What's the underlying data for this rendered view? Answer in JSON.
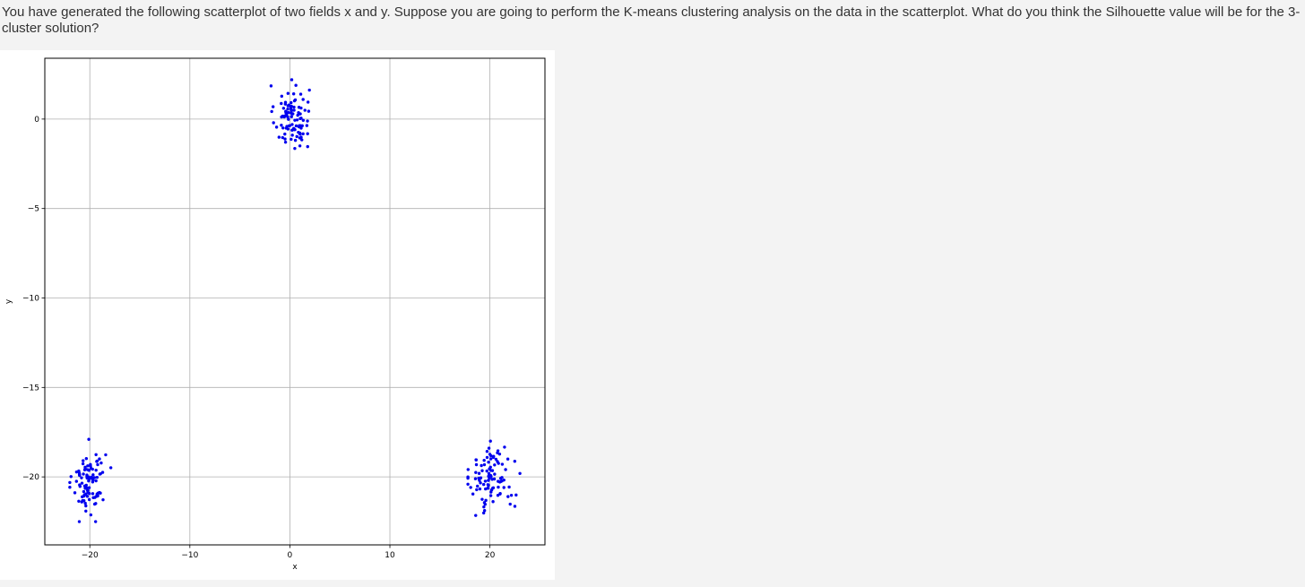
{
  "question": {
    "text": "You have generated the following scatterplot of two fields x and y.  Suppose you are going to perform the K-means clustering analysis on the data in the scatterplot.  What do you think the Silhouette value will be for the 3-cluster solution?"
  },
  "colors": {
    "point": "#0000ee",
    "grid": "#b0b0b0",
    "axis": "#000000",
    "page_background": "#f3f3f3",
    "figure_background": "#ffffff"
  },
  "chart_data": {
    "type": "scatter",
    "title": "",
    "xlabel": "x",
    "ylabel": "y",
    "xlim": [
      -24.5,
      25.5
    ],
    "ylim": [
      -23.8,
      3.4
    ],
    "grid": true,
    "legend": "none",
    "xticks": [
      -20,
      -10,
      0,
      10,
      20
    ],
    "xtick_labels": [
      "−20",
      "−10",
      "0",
      "10",
      "20"
    ],
    "yticks": [
      0,
      -5,
      -10,
      -15,
      -20
    ],
    "ytick_labels": [
      "0",
      "−5",
      "−10",
      "−15",
      "−20"
    ],
    "clusters": [
      {
        "center": [
          0.2,
          0.1
        ],
        "n_points": 100,
        "approx_x_range": [
          -1.9,
          2.4
        ],
        "approx_y_range": [
          -2.3,
          2.2
        ]
      },
      {
        "center": [
          -20.1,
          -20.2
        ],
        "n_points": 100,
        "approx_x_range": [
          -22.0,
          -17.9
        ],
        "approx_y_range": [
          -22.5,
          -17.9
        ]
      },
      {
        "center": [
          20.2,
          -20.1
        ],
        "n_points": 100,
        "approx_x_range": [
          17.8,
          23.3
        ],
        "approx_y_range": [
          -22.5,
          -18.0
        ]
      }
    ],
    "points_note": "Individual point coordinates are not printed; each cluster is drawn as 100 points scattered around its center within the approximate ranges above."
  }
}
